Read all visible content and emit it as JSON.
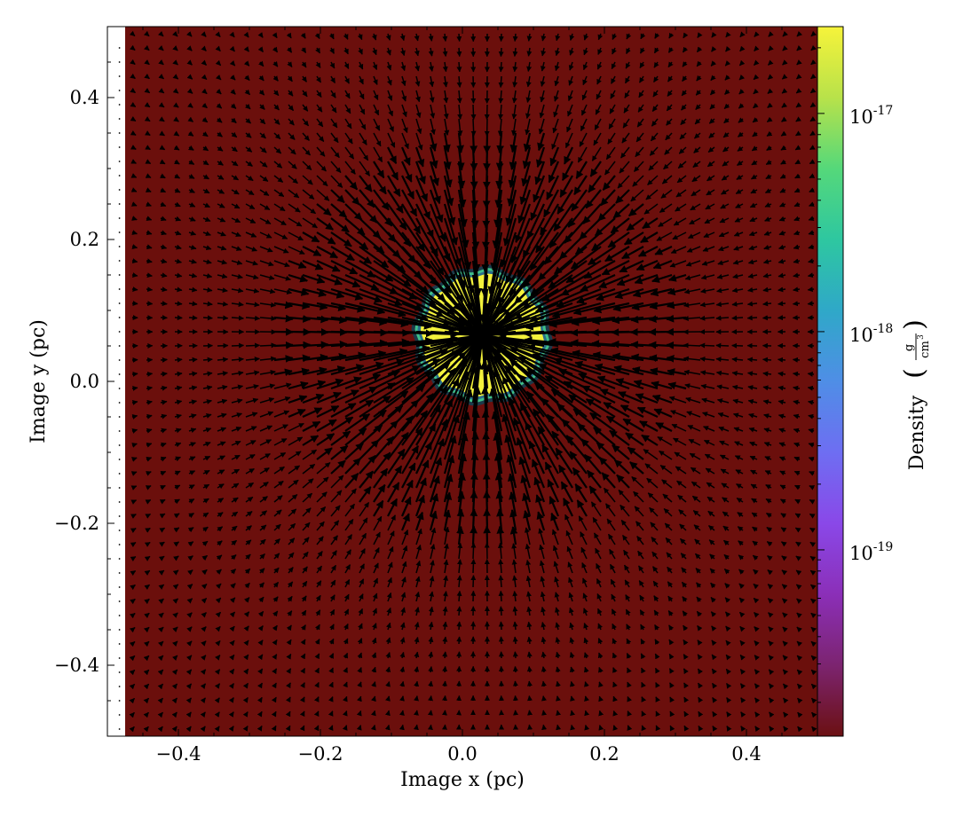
{
  "chart_data": {
    "type": "heatmap",
    "subtype": "density-slice-with-velocity-vectors",
    "xlabel": "Image x  (pc)",
    "ylabel": "Image y  (pc)",
    "xlim": [
      -0.5,
      0.5
    ],
    "ylim": [
      -0.5,
      0.5
    ],
    "x_ticks": [
      {
        "value": -0.4,
        "label": "−0.4"
      },
      {
        "value": -0.2,
        "label": "−0.2"
      },
      {
        "value": 0.0,
        "label": "0.0"
      },
      {
        "value": 0.2,
        "label": "0.2"
      },
      {
        "value": 0.4,
        "label": "0.4"
      }
    ],
    "y_ticks": [
      {
        "value": 0.4,
        "label": "0.4"
      },
      {
        "value": 0.2,
        "label": "0.2"
      },
      {
        "value": 0.0,
        "label": "0.0"
      },
      {
        "value": -0.2,
        "label": "−0.2"
      },
      {
        "value": -0.4,
        "label": "−0.4"
      }
    ],
    "image_extent": {
      "x": [
        -0.475,
        0.5
      ],
      "y": [
        -0.5,
        0.5
      ]
    },
    "background_density_color": "#6b0f0c",
    "core": {
      "center": [
        0.028,
        0.065
      ],
      "radius": 0.095,
      "color": "#f4f23c",
      "rim_colors": [
        "#1c3a4a",
        "#3fbf8a",
        "#2b6e8a"
      ]
    },
    "vector_field": {
      "pattern": "radial-inflow",
      "center": [
        0.028,
        0.065
      ],
      "grid_step": 0.02,
      "color": "#000000"
    },
    "colorbar": {
      "label": "Density",
      "unit_numerator": "g",
      "unit_denominator": "cm",
      "unit_denominator_exponent": "3",
      "scale": "log",
      "range": [
        1.4e-20,
        2.5e-17
      ],
      "ticks": [
        {
          "value": 1e-17,
          "base": "10",
          "exponent": "-17"
        },
        {
          "value": 1e-18,
          "base": "10",
          "exponent": "-18"
        },
        {
          "value": 1e-19,
          "base": "10",
          "exponent": "-19"
        }
      ],
      "colors": [
        "#f6f33a",
        "#b8e24a",
        "#55d87a",
        "#2ec7a0",
        "#2fa8c8",
        "#4f8ee6",
        "#6e6ef2",
        "#8a48e8",
        "#8b2fb8",
        "#7c2470",
        "#6b1012"
      ]
    }
  }
}
